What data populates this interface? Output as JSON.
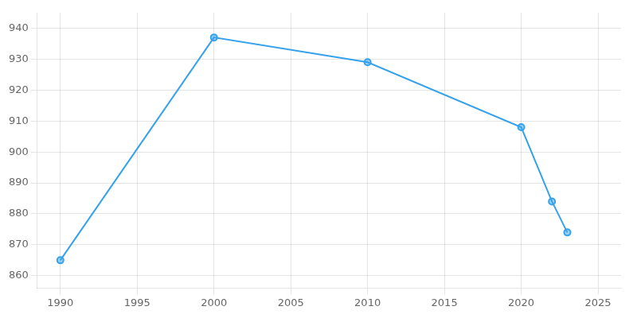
{
  "chart_data": {
    "type": "line",
    "x": [
      1990,
      2000,
      2010,
      2020,
      2022,
      2023
    ],
    "values": [
      865,
      937,
      929,
      908,
      884,
      874
    ],
    "xlim": [
      1988.5,
      2026.5
    ],
    "ylim": [
      856,
      945
    ],
    "xticks": [
      1990,
      1995,
      2000,
      2005,
      2010,
      2015,
      2020,
      2025
    ],
    "yticks": [
      860,
      870,
      880,
      890,
      900,
      910,
      920,
      930,
      940
    ],
    "grid": true,
    "marker": "circle"
  }
}
